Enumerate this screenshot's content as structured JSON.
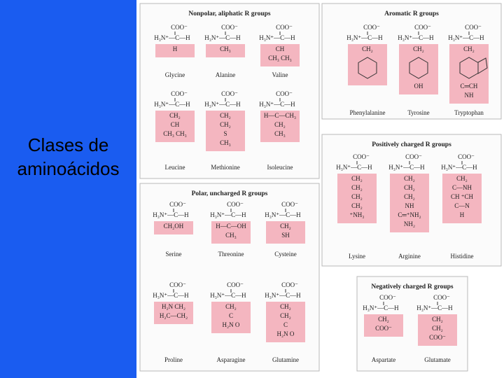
{
  "slide_title": "Clases de aminoácidos",
  "backbone": {
    "carboxyl": "COO⁻",
    "amine": "H₃N⁺—C—H"
  },
  "groups": [
    {
      "title": "Nonpolar, aliphatic R groups",
      "amino_acids": [
        {
          "name": "Glycine",
          "side_chain": [
            "H"
          ]
        },
        {
          "name": "Alanine",
          "side_chain": [
            "CH₃"
          ]
        },
        {
          "name": "Valine",
          "side_chain": [
            "CH",
            "CH₃   CH₃"
          ]
        },
        {
          "name": "Leucine",
          "side_chain": [
            "CH₂",
            "CH",
            "CH₃   CH₃"
          ]
        },
        {
          "name": "Methionine",
          "side_chain": [
            "CH₂",
            "CH₂",
            "S",
            "CH₃"
          ]
        },
        {
          "name": "Isoleucine",
          "side_chain": [
            "H—C—CH₃",
            "CH₂",
            "CH₃"
          ]
        }
      ]
    },
    {
      "title": "Aromatic R groups",
      "amino_acids": [
        {
          "name": "Phenylalanine",
          "side_chain": [
            "CH₂"
          ]
        },
        {
          "name": "Tyrosine",
          "side_chain": [
            "CH₂",
            "OH"
          ]
        },
        {
          "name": "Tryptophan",
          "side_chain": [
            "CH₂",
            "C═CH",
            "NH"
          ]
        }
      ]
    },
    {
      "title": "Positively charged R groups",
      "amino_acids": [
        {
          "name": "Lysine",
          "side_chain": [
            "CH₂",
            "CH₂",
            "CH₂",
            "CH₂",
            "⁺NH₃"
          ]
        },
        {
          "name": "Arginine",
          "side_chain": [
            "CH₂",
            "CH₂",
            "CH₂",
            "NH",
            "C═⁺NH₂",
            "NH₂"
          ]
        },
        {
          "name": "Histidine",
          "side_chain": [
            "CH₂",
            "C—NH",
            "CH   ⁺CH",
            "C—N",
            "H"
          ]
        }
      ]
    },
    {
      "title": "Polar, uncharged R groups",
      "amino_acids": [
        {
          "name": "Serine",
          "side_chain": [
            "CH₂OH"
          ]
        },
        {
          "name": "Threonine",
          "side_chain": [
            "H—C—OH",
            "CH₃"
          ]
        },
        {
          "name": "Cysteine",
          "side_chain": [
            "CH₂",
            "SH"
          ]
        },
        {
          "name": "Proline",
          "side_chain": [
            "H₂N  CH₂",
            "H₂C—CH₂"
          ]
        },
        {
          "name": "Asparagine",
          "side_chain": [
            "CH₂",
            "C",
            "H₂N   O"
          ]
        },
        {
          "name": "Glutamine",
          "side_chain": [
            "CH₂",
            "CH₂",
            "C",
            "H₂N   O"
          ]
        }
      ]
    },
    {
      "title": "Negatively charged R groups",
      "amino_acids": [
        {
          "name": "Aspartate",
          "side_chain": [
            "CH₂",
            "COO⁻"
          ]
        },
        {
          "name": "Glutamate",
          "side_chain": [
            "CH₂",
            "CH₂",
            "COO⁻"
          ]
        }
      ]
    }
  ]
}
